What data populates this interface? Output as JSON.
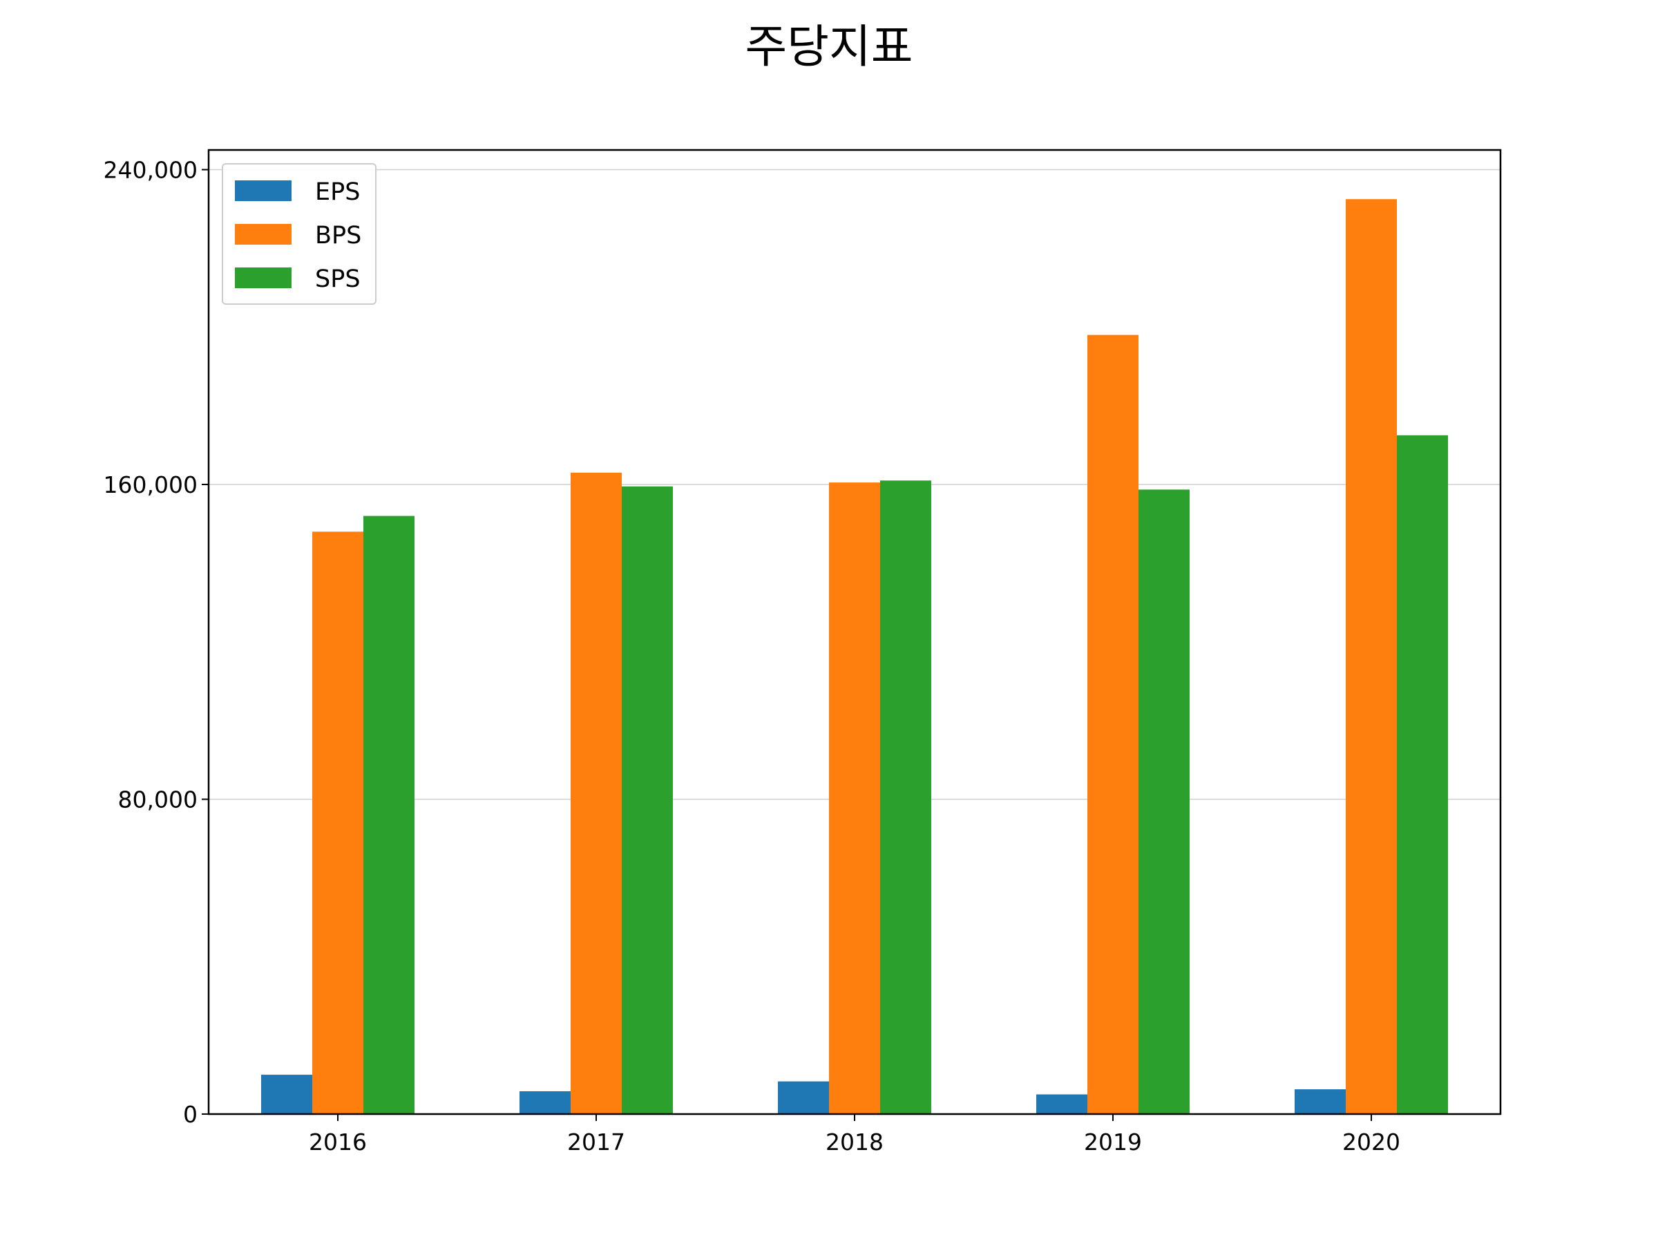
{
  "chart_data": {
    "type": "bar",
    "title": "주당지표",
    "xlabel": "",
    "ylabel": "",
    "categories": [
      "2016",
      "2017",
      "2018",
      "2019",
      "2020"
    ],
    "series": [
      {
        "name": "EPS",
        "color": "#1f77b4",
        "values": [
          10000,
          5800,
          8300,
          5000,
          6300
        ]
      },
      {
        "name": "BPS",
        "color": "#ff7f0e",
        "values": [
          148000,
          163000,
          160500,
          198000,
          232500
        ]
      },
      {
        "name": "SPS",
        "color": "#2ca02c",
        "values": [
          152000,
          159500,
          161000,
          158700,
          172500
        ]
      }
    ],
    "yticks": [
      0,
      80000,
      160000,
      240000
    ],
    "ytick_labels": [
      "0",
      "80,000",
      "160,000",
      "240,000"
    ],
    "ylim": [
      0,
      245000
    ],
    "grid": "y",
    "legend_position": "upper-left"
  }
}
